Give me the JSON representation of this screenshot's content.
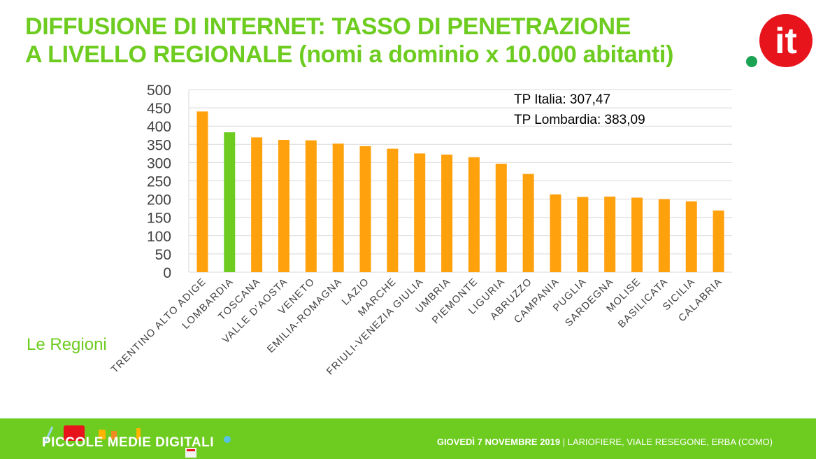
{
  "header": {
    "title_line1": "DIFFUSIONE DI INTERNET: TASSO DI PENETRAZIONE",
    "title_line2": "A LIVELLO REGIONALE (nomi a dominio x 10.000 abitanti)"
  },
  "logo": {
    "dot_color": "#1aa352",
    "circle_color": "#e8141b",
    "text": "it"
  },
  "section_label": "Le Regioni",
  "footer": {
    "brand": "PICCOLE MEDIE DIGITALI",
    "event_date": "GIOVEDÌ 7 NOVEMBRE 2019",
    "event_place": " | LARIOFIERE, VIALE RESEGONE, ERBA (COMO)"
  },
  "colors": {
    "accent": "#6dcc1f",
    "bar": "#ffa10d",
    "highlight": "#6dcc1f"
  },
  "chart_data": {
    "type": "bar",
    "categories": [
      "TRENTINO ALTO ADIGE",
      "LOMBARDIA",
      "TOSCANA",
      "VALLE D'AOSTA",
      "VENETO",
      "EMILIA-ROMAGNA",
      "LAZIO",
      "MARCHE",
      "FRIULI-VENEZIA GIULIA",
      "UMBRIA",
      "PIEMONTE",
      "LIGURIA",
      "ABRUZZO",
      "CAMPANIA",
      "PUGLIA",
      "SARDEGNA",
      "MOLISE",
      "BASILICATA",
      "SICILIA",
      "CALABRIA"
    ],
    "values": [
      440,
      383,
      369,
      362,
      361,
      352,
      345,
      338,
      325,
      322,
      315,
      297,
      269,
      213,
      206,
      207,
      204,
      200,
      194,
      169
    ],
    "highlight_index": 1,
    "ylim": [
      0,
      500
    ],
    "yticks": [
      0,
      50,
      100,
      150,
      200,
      250,
      300,
      350,
      400,
      450,
      500
    ],
    "grid": true,
    "annotations": [
      "TP Italia: 307,47",
      "TP Lombardia: 383,09"
    ],
    "title": "",
    "xlabel": "",
    "ylabel": ""
  }
}
